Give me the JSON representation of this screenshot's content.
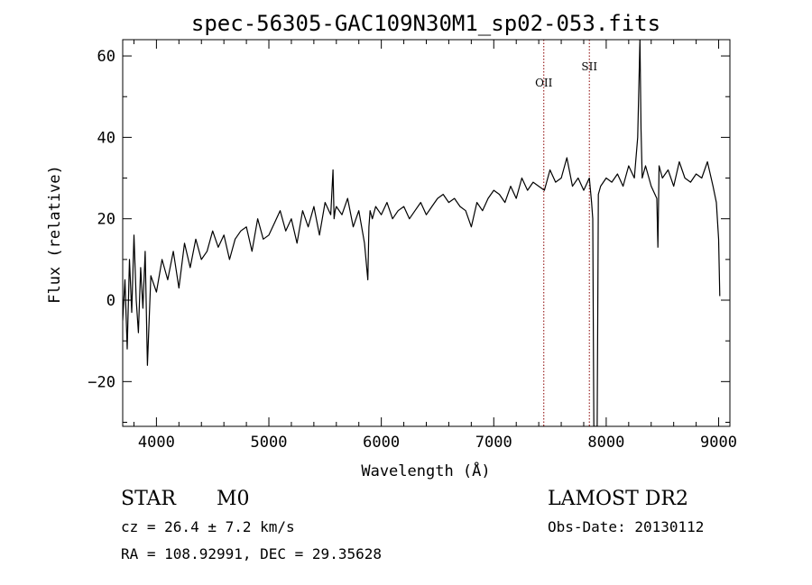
{
  "chart_data": {
    "type": "line",
    "title": "spec-56305-GAC109N30M1_sp02-053.fits",
    "xlabel": "Wavelength (Å)",
    "ylabel": "Flux (relative)",
    "xlim": [
      3700,
      9100
    ],
    "ylim": [
      -31,
      64
    ],
    "xticks": [
      4000,
      5000,
      6000,
      7000,
      8000,
      9000
    ],
    "xtick_labels": [
      "4000",
      "5000",
      "6000",
      "7000",
      "8000",
      "9000"
    ],
    "yticks": [
      -20,
      0,
      20,
      40,
      60
    ],
    "ytick_labels": [
      "−20",
      "0",
      "20",
      "40",
      "60"
    ],
    "grid": false,
    "line_color": "#000000",
    "marker_color": "#8b0000",
    "spectral_lines": [
      {
        "label": "OII",
        "x": 7445
      },
      {
        "label": "SII",
        "x": 7850
      }
    ],
    "series": [
      {
        "x": [
          3700,
          3720,
          3740,
          3760,
          3780,
          3800,
          3820,
          3840,
          3860,
          3880,
          3900,
          3920,
          3950,
          4000,
          4050,
          4100,
          4150,
          4200,
          4250,
          4300,
          4350,
          4400,
          4450,
          4500,
          4550,
          4600,
          4650,
          4700,
          4750,
          4800,
          4850,
          4900,
          4950,
          5000,
          5050,
          5100,
          5150,
          5200,
          5250,
          5300,
          5350,
          5400,
          5450,
          5500,
          5550,
          5570,
          5580,
          5590,
          5600,
          5650,
          5700,
          5750,
          5800,
          5850,
          5880,
          5890,
          5900,
          5920,
          5950,
          6000,
          6050,
          6100,
          6150,
          6200,
          6250,
          6300,
          6350,
          6400,
          6450,
          6500,
          6550,
          6600,
          6650,
          6700,
          6750,
          6800,
          6850,
          6900,
          6950,
          7000,
          7050,
          7100,
          7150,
          7200,
          7250,
          7300,
          7350,
          7400,
          7450,
          7500,
          7550,
          7600,
          7650,
          7700,
          7750,
          7800,
          7850,
          7870,
          7880,
          7890,
          7900,
          7910,
          7920,
          7930,
          7950,
          8000,
          8050,
          8100,
          8150,
          8200,
          8250,
          8280,
          8300,
          8310,
          8320,
          8350,
          8400,
          8450,
          8460,
          8470,
          8500,
          8550,
          8600,
          8650,
          8700,
          8750,
          8800,
          8850,
          8900,
          8950,
          8980,
          9000,
          9010
        ],
        "y": [
          -5,
          5,
          -12,
          10,
          -3,
          16,
          0,
          -8,
          8,
          -2,
          12,
          -16,
          6,
          2,
          10,
          5,
          12,
          3,
          14,
          8,
          15,
          10,
          12,
          17,
          13,
          16,
          10,
          15,
          17,
          18,
          12,
          20,
          15,
          16,
          19,
          22,
          17,
          20,
          14,
          22,
          18,
          23,
          16,
          24,
          21,
          32,
          20,
          22,
          23,
          21,
          25,
          18,
          22,
          14,
          5,
          18,
          22,
          20,
          23,
          21,
          24,
          20,
          22,
          23,
          20,
          22,
          24,
          21,
          23,
          25,
          26,
          24,
          25,
          23,
          22,
          18,
          24,
          22,
          25,
          27,
          26,
          24,
          28,
          25,
          30,
          27,
          29,
          28,
          27,
          32,
          29,
          30,
          35,
          28,
          30,
          27,
          30,
          24,
          20,
          -31,
          -31,
          -31,
          -31,
          26,
          28,
          30,
          29,
          31,
          28,
          33,
          30,
          40,
          64,
          42,
          30,
          33,
          28,
          25,
          13,
          33,
          30,
          32,
          28,
          34,
          30,
          29,
          31,
          30,
          34,
          28,
          24,
          15,
          1
        ]
      }
    ]
  },
  "info": {
    "class_label": "STAR",
    "subclass_label": "M0",
    "survey": "LAMOST DR2",
    "cz_text": "cz = 26.4 ± 7.2 km/s",
    "obs_date": "Obs-Date: 20130112",
    "radec_text": "RA = 108.92991, DEC =  29.35628"
  }
}
